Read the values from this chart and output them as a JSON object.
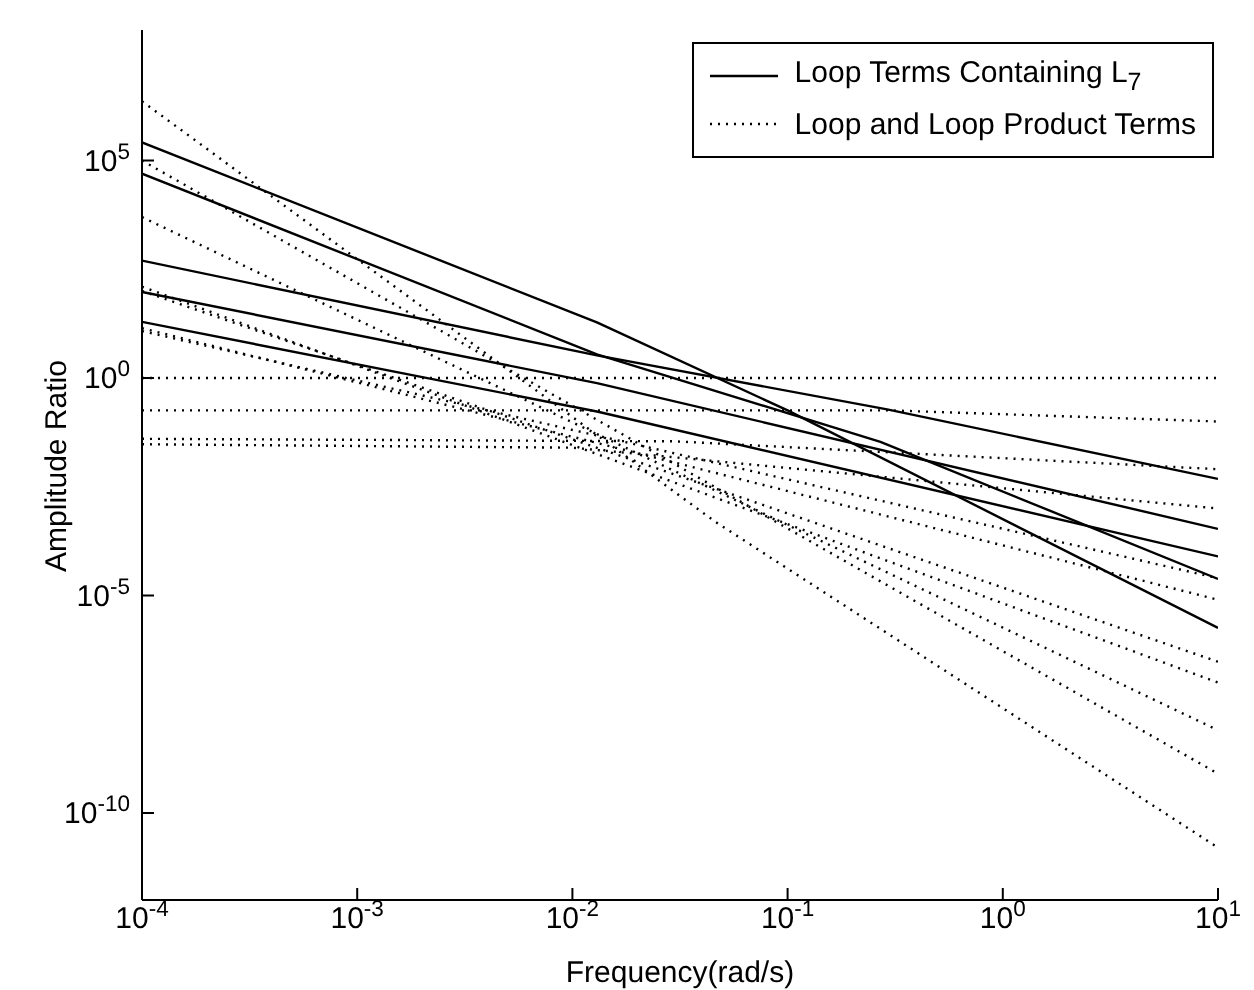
{
  "chart_data": {
    "type": "line",
    "xlabel": "Frequency(rad/s)",
    "ylabel": "Amplitude Ratio",
    "log": "xy",
    "xlim": [
      0.0001,
      10
    ],
    "ylim": [
      1e-12,
      100000000.0
    ],
    "xticks": [
      {
        "value": 0.0001,
        "label": "10$^{-4}$"
      },
      {
        "value": 0.001,
        "label": "10$^{-3}$"
      },
      {
        "value": 0.01,
        "label": "10$^{-2}$"
      },
      {
        "value": 0.1,
        "label": "10$^{-1}$"
      },
      {
        "value": 1,
        "label": "10$^{0}$"
      },
      {
        "value": 10,
        "label": "10$^{1}$"
      }
    ],
    "yticks": [
      {
        "value": 1e-10,
        "label": "10$^{-10}$"
      },
      {
        "value": 1e-05,
        "label": "10$^{-5}$"
      },
      {
        "value": 1,
        "label": "10$^{0}$"
      },
      {
        "value": 100000.0,
        "label": "10$^{5}$"
      }
    ],
    "legend": "top right",
    "grid": false,
    "marker": "none",
    "series": [
      {
        "name": "Loop Terms Containing L$_{7}$",
        "color": "#000000",
        "line_style": "solid",
        "x": [
          0.0001,
          0.013,
          0.1,
          10
        ],
        "values": [
          260000.0,
          19,
          0.18,
          1.8e-06
        ]
      },
      {
        "color": "#000000",
        "line_style": "solid",
        "x": [
          0.0001,
          0.013,
          0.27,
          10
        ],
        "values": [
          50000.0,
          3.5,
          0.034,
          2.4e-05
        ]
      },
      {
        "color": "#000000",
        "line_style": "solid",
        "x": [
          0.0001,
          0.013,
          0.29,
          10
        ],
        "values": [
          500,
          3.3,
          0.19,
          0.0048
        ]
      },
      {
        "color": "#000000",
        "line_style": "solid",
        "x": [
          0.0001,
          0.013,
          10
        ],
        "values": [
          95,
          0.76,
          0.00034
        ]
      },
      {
        "color": "#000000",
        "line_style": "solid",
        "x": [
          0.0001,
          0.013,
          10
        ],
        "values": [
          19.5,
          0.17,
          7.9e-05
        ]
      },
      {
        "name": "Loop and Loop Product Terms",
        "color": "#000000",
        "line_style": "dotted",
        "x": [
          0.0001,
          0.046,
          10
        ],
        "values": [
          2300000.0,
          0.0005,
          1.6e-11
        ]
      },
      {
        "color": "#000000",
        "line_style": "dotted",
        "x": [
          0.0001,
          10
        ],
        "values": [
          100000.0,
          8e-10
        ]
      },
      {
        "color": "#000000",
        "line_style": "dotted",
        "x": [
          0.0001,
          10
        ],
        "values": [
          5000,
          8e-09
        ]
      },
      {
        "color": "#000000",
        "line_style": "dotted",
        "x": [
          0.0001,
          10
        ],
        "values": [
          126,
          1e-07
        ]
      },
      {
        "color": "#000000",
        "line_style": "dotted",
        "x": [
          0.0001,
          10
        ],
        "values": [
          100,
          3e-07
        ]
      },
      {
        "color": "#000000",
        "line_style": "dotted",
        "x": [
          0.0001,
          10
        ],
        "values": [
          14,
          8e-06
        ]
      },
      {
        "color": "#000000",
        "line_style": "dotted",
        "x": [
          0.0001,
          10
        ],
        "values": [
          12,
          2.5e-05
        ]
      },
      {
        "color": "#000000",
        "line_style": "dotted",
        "x": [
          0.0001,
          10
        ],
        "values": [
          1,
          1
        ]
      },
      {
        "color": "#000000",
        "line_style": "dotted",
        "x": [
          0.0001,
          0.3,
          10
        ],
        "values": [
          0.18,
          0.18,
          0.1
        ]
      },
      {
        "color": "#000000",
        "line_style": "dotted",
        "x": [
          0.0001,
          0.03,
          10
        ],
        "values": [
          0.04,
          0.035,
          0.008
        ]
      },
      {
        "color": "#000000",
        "line_style": "dotted",
        "x": [
          0.0001,
          0.01,
          10
        ],
        "values": [
          0.03,
          0.025,
          0.001
        ]
      }
    ]
  }
}
